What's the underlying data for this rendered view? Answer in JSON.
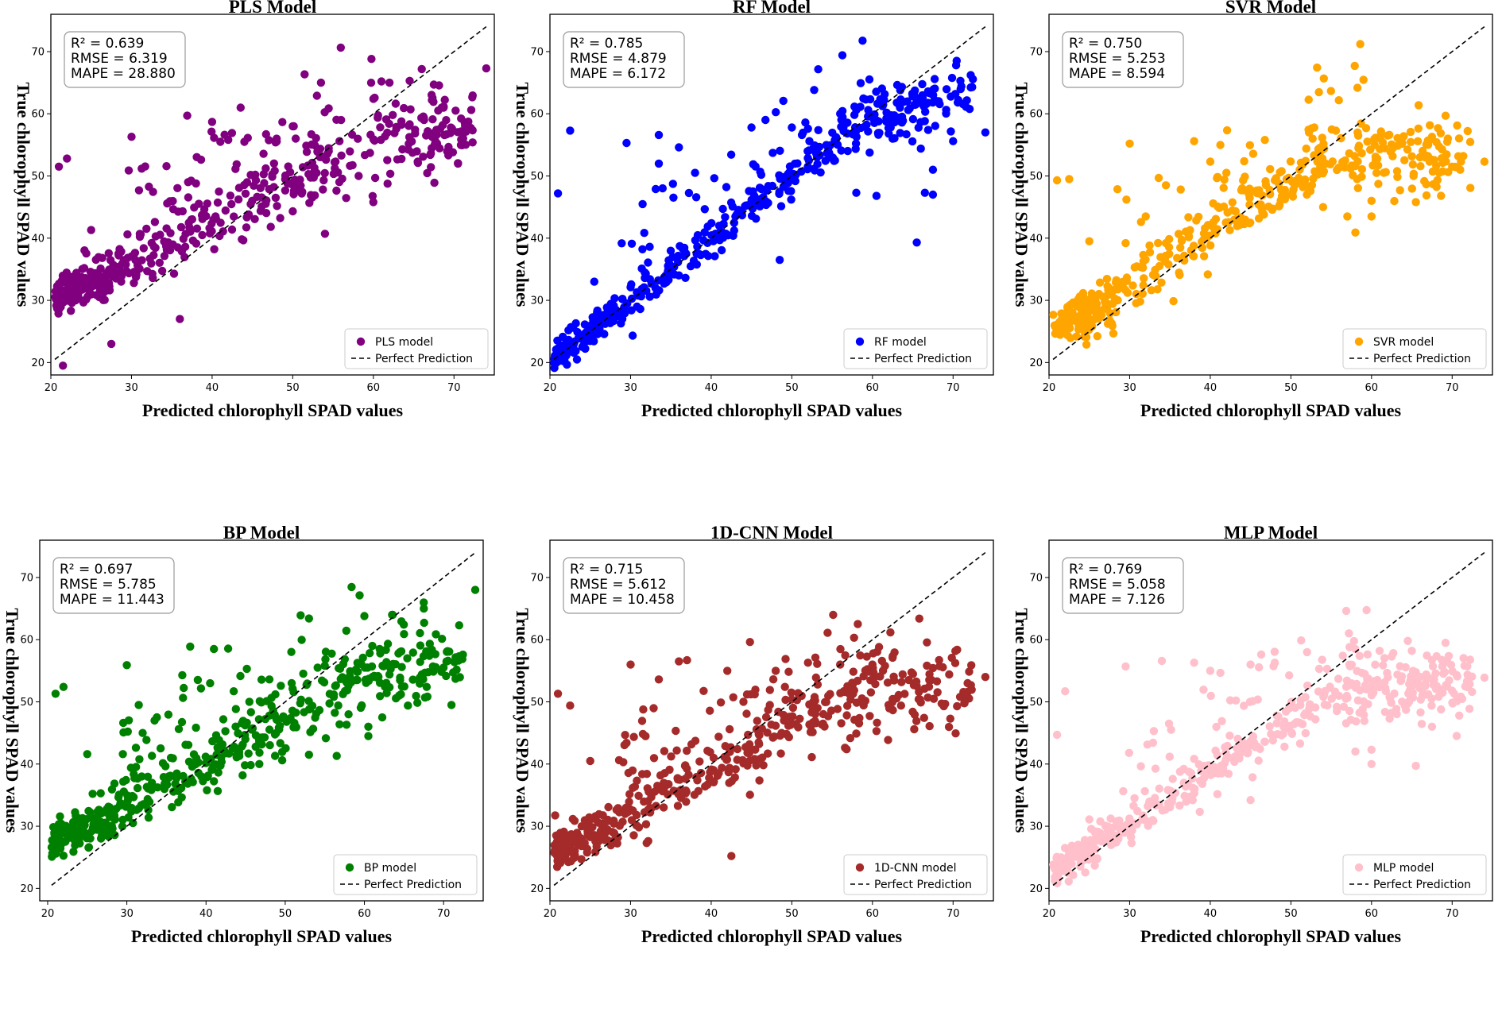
{
  "chart_data": [
    {
      "type": "scatter",
      "title": "PLS Model",
      "xlabel": "Predicted chlorophyll SPAD values",
      "ylabel": "True chlorophyll SPAD values",
      "xlim": [
        20,
        75
      ],
      "ylim": [
        18,
        76
      ],
      "xticks": [
        20,
        30,
        40,
        50,
        60,
        70
      ],
      "yticks": [
        20,
        30,
        40,
        50,
        60,
        70
      ],
      "color": "#800080",
      "legend": [
        "PLS model",
        "Perfect Prediction"
      ],
      "legend_position": "lower-right",
      "stats": [
        "R² = 0.639",
        "RMSE = 6.319",
        "MAPE = 28.880"
      ],
      "trend": {
        "y0": 30.5,
        "x1": 60,
        "y1": 56,
        "x2": 75,
        "y2": 58,
        "mode": "flat",
        "spread": 2.2
      },
      "outliers": [
        [
          21,
          51.5
        ],
        [
          22,
          52.8
        ],
        [
          25,
          41.3
        ],
        [
          27.5,
          23
        ],
        [
          29.5,
          40.6
        ],
        [
          30,
          56.3
        ],
        [
          36,
          27
        ],
        [
          38,
          48.8
        ],
        [
          40,
          58.7
        ],
        [
          42,
          55.8
        ],
        [
          44,
          55.5
        ],
        [
          48,
          56
        ],
        [
          50,
          58
        ],
        [
          53.5,
          65
        ],
        [
          53,
          62.9
        ],
        [
          56,
          59
        ],
        [
          61,
          65.2
        ],
        [
          62,
          65
        ],
        [
          64.5,
          65.3
        ],
        [
          66,
          67.2
        ],
        [
          67.5,
          64.7
        ],
        [
          70.5,
          52
        ],
        [
          74,
          67.3
        ],
        [
          65.5,
          52.3
        ],
        [
          21.5,
          19.5
        ],
        [
          54,
          40.7
        ],
        [
          60,
          45.8
        ]
      ]
    },
    {
      "type": "scatter",
      "title": "RF Model",
      "xlabel": "Predicted chlorophyll SPAD values",
      "ylabel": "True chlorophyll SPAD values",
      "xlim": [
        20,
        75
      ],
      "ylim": [
        18,
        76
      ],
      "xticks": [
        20,
        30,
        40,
        50,
        60,
        70
      ],
      "yticks": [
        20,
        30,
        40,
        50,
        60,
        70
      ],
      "color": "#0000ff",
      "legend": [
        "RF model",
        "Perfect Prediction"
      ],
      "legend_position": "lower-right",
      "stats": [
        "R² = 0.785",
        "RMSE = 4.879",
        "MAPE = 6.172"
      ],
      "trend": {
        "y0": 20.5,
        "x1": 60,
        "y1": 60,
        "x2": 75,
        "y2": 65,
        "mode": "identity",
        "spread": 1.5
      },
      "outliers": [
        [
          21,
          47.2
        ],
        [
          22.5,
          57.3
        ],
        [
          25.5,
          33
        ],
        [
          29.5,
          55.3
        ],
        [
          33.5,
          56.6
        ],
        [
          33.5,
          52
        ],
        [
          36,
          54.6
        ],
        [
          38,
          50.5
        ],
        [
          45,
          57.8
        ],
        [
          48.5,
          36.5
        ],
        [
          50,
          57.8
        ],
        [
          52,
          57.6
        ],
        [
          56,
          60
        ],
        [
          58,
          60.6
        ],
        [
          63.5,
          62.3
        ],
        [
          65,
          62.8
        ],
        [
          65.5,
          39.3
        ],
        [
          66,
          54.4
        ],
        [
          66.5,
          47.3
        ],
        [
          67.5,
          47
        ],
        [
          67.5,
          51
        ],
        [
          70,
          55.6
        ],
        [
          74,
          57
        ],
        [
          62.5,
          56
        ],
        [
          58,
          47.3
        ],
        [
          60.5,
          46.8
        ]
      ]
    },
    {
      "type": "scatter",
      "title": "SVR Model",
      "xlabel": "Predicted chlorophyll SPAD values",
      "ylabel": "True chlorophyll SPAD values",
      "xlim": [
        20,
        75
      ],
      "ylim": [
        18,
        76
      ],
      "xticks": [
        20,
        30,
        40,
        50,
        60,
        70
      ],
      "yticks": [
        20,
        30,
        40,
        50,
        60,
        70
      ],
      "color": "#ffa500",
      "legend": [
        "SVR model",
        "Perfect Prediction"
      ],
      "legend_position": "lower-right",
      "stats": [
        "R² = 0.750",
        "RMSE = 5.253",
        "MAPE = 8.594"
      ],
      "trend": {
        "y0": 25.5,
        "x1": 55,
        "y1": 53,
        "x2": 75,
        "y2": 53,
        "mode": "flat",
        "spread": 1.8
      },
      "outliers": [
        [
          21,
          49.3
        ],
        [
          22.5,
          49.5
        ],
        [
          25,
          39.5
        ],
        [
          29.5,
          39.2
        ],
        [
          30,
          55.2
        ],
        [
          32,
          43.5
        ],
        [
          34.5,
          48.5
        ],
        [
          38,
          55.6
        ],
        [
          40,
          52.3
        ],
        [
          42,
          50.5
        ],
        [
          48,
          49.3
        ],
        [
          54,
          45
        ],
        [
          57,
          43.5
        ],
        [
          58,
          40.9
        ],
        [
          60,
          43.5
        ],
        [
          60,
          46
        ],
        [
          65.5,
          45.8
        ],
        [
          67.5,
          56.3
        ],
        [
          70,
          51.5
        ],
        [
          71,
          51
        ],
        [
          74,
          52.3
        ],
        [
          62,
          56.5
        ],
        [
          64,
          56.4
        ],
        [
          66,
          53
        ],
        [
          58,
          51.6
        ]
      ]
    },
    {
      "type": "scatter",
      "title": "BP Model",
      "xlabel": "Predicted chlorophyll SPAD values",
      "ylabel": "True chlorophyll SPAD values",
      "xlim": [
        19,
        75
      ],
      "ylim": [
        18,
        76
      ],
      "xticks": [
        20,
        30,
        40,
        50,
        60,
        70
      ],
      "yticks": [
        20,
        30,
        40,
        50,
        60,
        70
      ],
      "color": "#008000",
      "legend": [
        "BP model",
        "Perfect Prediction"
      ],
      "legend_position": "lower-right",
      "stats": [
        "R² = 0.697",
        "RMSE = 5.785",
        "MAPE = 11.443"
      ],
      "trend": {
        "y0": 27.5,
        "x1": 60,
        "y1": 54,
        "x2": 75,
        "y2": 57,
        "mode": "flat",
        "spread": 2.0
      },
      "outliers": [
        [
          21,
          51.3
        ],
        [
          22,
          52.4
        ],
        [
          25,
          41.6
        ],
        [
          29.5,
          41.6
        ],
        [
          30,
          55.9
        ],
        [
          31.5,
          49.5
        ],
        [
          32,
          45
        ],
        [
          33.5,
          47
        ],
        [
          37,
          54.3
        ],
        [
          38,
          58.9
        ],
        [
          41,
          58.5
        ],
        [
          43.5,
          51.7
        ],
        [
          48,
          53.6
        ],
        [
          53,
          63.4
        ],
        [
          55,
          55.8
        ],
        [
          60,
          63.8
        ],
        [
          61,
          59
        ],
        [
          62,
          57.8
        ],
        [
          63.5,
          64
        ],
        [
          65,
          60.9
        ],
        [
          65.5,
          49.4
        ],
        [
          67.5,
          65
        ],
        [
          67,
          53.9
        ],
        [
          71,
          49.5
        ],
        [
          74,
          68
        ],
        [
          58,
          48
        ],
        [
          53,
          41.5
        ],
        [
          56.5,
          41.3
        ],
        [
          60.5,
          44.5
        ],
        [
          60.5,
          46
        ]
      ]
    },
    {
      "type": "scatter",
      "title": "1D-CNN Model",
      "xlabel": "Predicted chlorophyll SPAD values",
      "ylabel": "True chlorophyll SPAD values",
      "xlim": [
        20,
        75
      ],
      "ylim": [
        18,
        76
      ],
      "xticks": [
        20,
        30,
        40,
        50,
        60,
        70
      ],
      "yticks": [
        20,
        30,
        40,
        50,
        60,
        70
      ],
      "color": "#a52a2a",
      "legend": [
        "1D-CNN model",
        "Perfect Prediction"
      ],
      "legend_position": "lower-right",
      "stats": [
        "R² = 0.715",
        "RMSE = 5.612",
        "MAPE = 10.458"
      ],
      "trend": {
        "y0": 26.5,
        "x1": 60,
        "y1": 52,
        "x2": 75,
        "y2": 55,
        "mode": "flat",
        "spread": 2.2
      },
      "outliers": [
        [
          21,
          51.3
        ],
        [
          22.5,
          49.4
        ],
        [
          25,
          40.5
        ],
        [
          29.5,
          43.4
        ],
        [
          30,
          56
        ],
        [
          33.5,
          53.6
        ],
        [
          36,
          56.5
        ],
        [
          37,
          56.7
        ],
        [
          42.5,
          25.2
        ],
        [
          42,
          55
        ],
        [
          48,
          55
        ],
        [
          52,
          56.3
        ],
        [
          53,
          53.9
        ],
        [
          56,
          56
        ],
        [
          60,
          56
        ],
        [
          62,
          49.5
        ],
        [
          64.5,
          53.5
        ],
        [
          65,
          48.4
        ],
        [
          66,
          49.9
        ],
        [
          68,
          53.3
        ],
        [
          70.5,
          49.3
        ],
        [
          74,
          54
        ],
        [
          60.5,
          45.3
        ],
        [
          58,
          44.9
        ],
        [
          32,
          27.3
        ]
      ]
    },
    {
      "type": "scatter",
      "title": "MLP Model",
      "xlabel": "Predicted chlorophyll SPAD values",
      "ylabel": "True chlorophyll SPAD values",
      "xlim": [
        20,
        75
      ],
      "ylim": [
        18,
        76
      ],
      "xticks": [
        20,
        30,
        40,
        50,
        60,
        70
      ],
      "yticks": [
        20,
        30,
        40,
        50,
        60,
        70
      ],
      "color": "#ffc0cb",
      "legend": [
        "MLP model",
        "Perfect Prediction"
      ],
      "legend_position": "lower-right",
      "stats": [
        "R² = 0.769",
        "RMSE = 5.058",
        "MAPE = 7.126"
      ],
      "trend": {
        "y0": 22.5,
        "x1": 55,
        "y1": 51,
        "x2": 75,
        "y2": 54,
        "mode": "identity",
        "spread": 1.6
      },
      "outliers": [
        [
          21,
          44.7
        ],
        [
          22,
          51.7
        ],
        [
          25,
          31.1
        ],
        [
          29.5,
          55.7
        ],
        [
          33,
          45.3
        ],
        [
          34,
          56.6
        ],
        [
          38,
          56.3
        ],
        [
          40,
          55
        ],
        [
          45,
          56
        ],
        [
          48,
          56.3
        ],
        [
          52,
          58
        ],
        [
          53.5,
          55.3
        ],
        [
          58,
          58.5
        ],
        [
          58,
          42
        ],
        [
          60,
          40
        ],
        [
          60,
          42.3
        ],
        [
          61,
          58.2
        ],
        [
          62.5,
          57.3
        ],
        [
          64.5,
          59.8
        ],
        [
          65,
          58.2
        ],
        [
          65.5,
          39.7
        ],
        [
          67.5,
          46
        ],
        [
          67.5,
          56.7
        ],
        [
          70.5,
          50.2
        ],
        [
          74,
          53.9
        ],
        [
          45,
          34.2
        ]
      ]
    }
  ]
}
